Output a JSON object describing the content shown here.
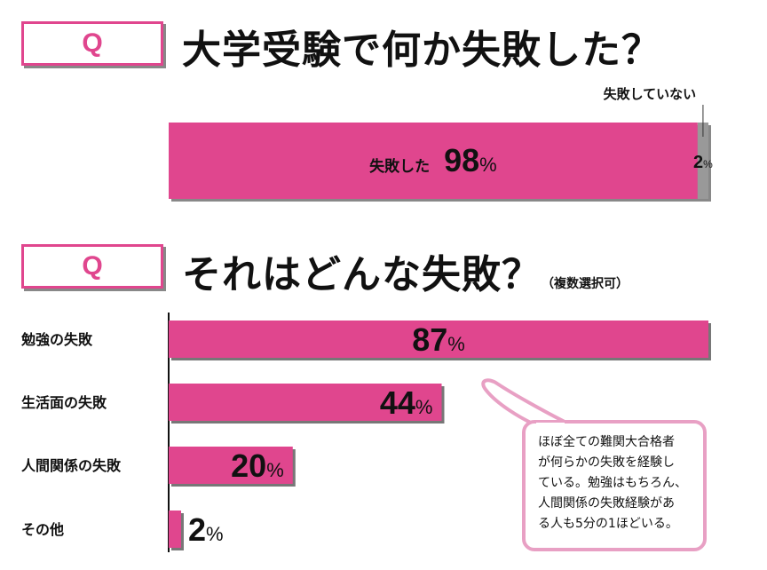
{
  "q_label": "Q",
  "question1": "大学受験で何か失敗した？",
  "question2": "それはどんな失敗？",
  "question2_note": "（複数選択可）",
  "colors": {
    "accent": "#e0468e",
    "gray": "#999999",
    "bubble_border": "#e8a0c4"
  },
  "chart_data": [
    {
      "type": "bar",
      "orientation": "horizontal-stacked",
      "series": [
        {
          "name": "失敗した",
          "value": 98,
          "color": "#e0468e"
        },
        {
          "name": "失敗していない",
          "value": 2,
          "color": "#999999"
        }
      ],
      "unit": "%",
      "xlim": [
        0,
        100
      ]
    },
    {
      "type": "bar",
      "orientation": "horizontal",
      "categories": [
        "勉強の失敗",
        "生活面の失敗",
        "人間関係の失敗",
        "その他"
      ],
      "values": [
        87,
        44,
        20,
        2
      ],
      "unit": "%",
      "xlim": [
        0,
        100
      ]
    }
  ],
  "bubble_lines": [
    "ほぼ全ての難関大合格者",
    "が何らかの失敗を経験し",
    "ている。勉強はもちろん、",
    "人間関係の失敗経験があ",
    "る人も5分の1ほどいる。"
  ]
}
